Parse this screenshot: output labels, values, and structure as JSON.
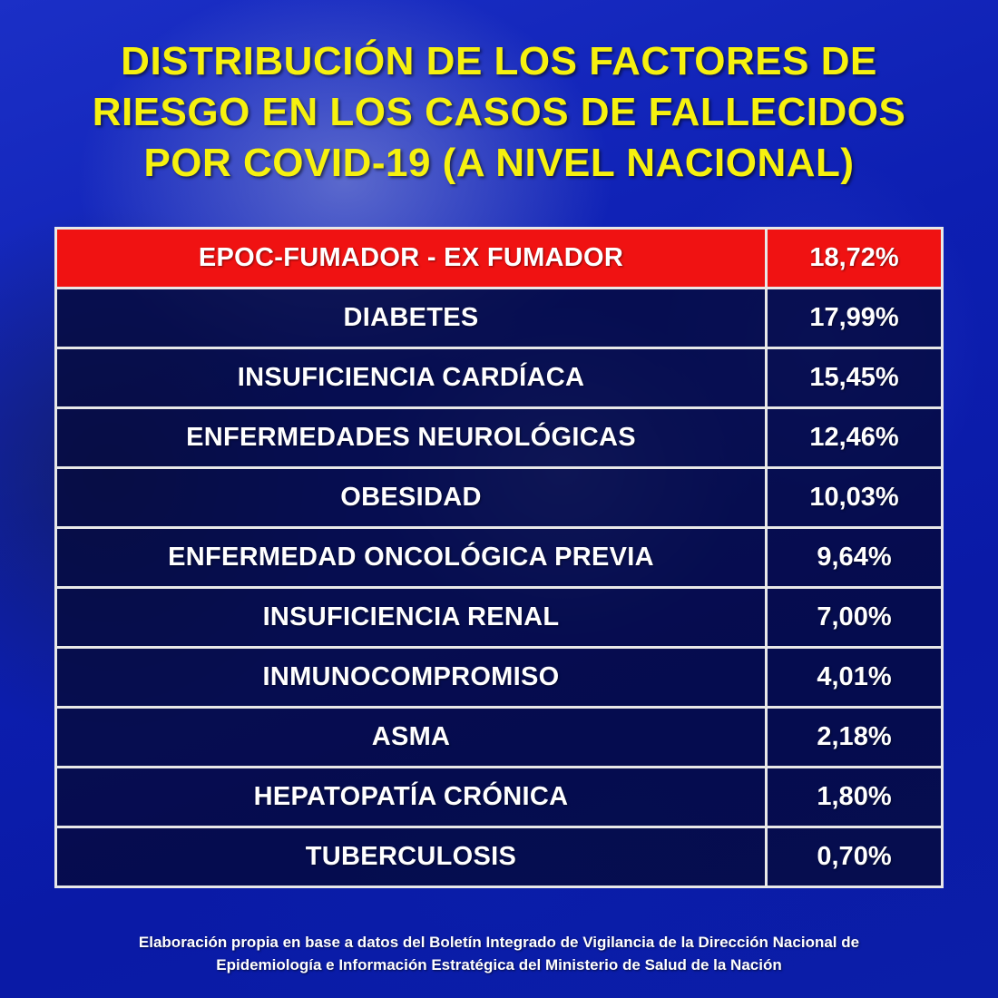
{
  "title_lines": [
    "DISTRIBUCIÓN DE LOS FACTORES DE",
    "RIESGO EN LOS CASOS DE FALLECIDOS",
    "POR COVID-19 (A NIVEL NACIONAL)"
  ],
  "colors": {
    "title": "#f6f10f",
    "highlight_row": "#f01212",
    "row_background": "#050a3c",
    "page_background": "#0c1aa8",
    "border": "#e8e8e8"
  },
  "chart_data": {
    "type": "table",
    "title": "DISTRIBUCIÓN DE LOS FACTORES DE RIESGO EN LOS CASOS DE FALLECIDOS POR COVID-19 (A NIVEL NACIONAL)",
    "rows": [
      {
        "label": "EPOC-FUMADOR - EX FUMADOR",
        "value": 18.72,
        "display": "18,72%",
        "highlight": true
      },
      {
        "label": "DIABETES",
        "value": 17.99,
        "display": "17,99%",
        "highlight": false
      },
      {
        "label": "INSUFICIENCIA CARDÍACA",
        "value": 15.45,
        "display": "15,45%",
        "highlight": false
      },
      {
        "label": "ENFERMEDADES NEUROLÓGICAS",
        "value": 12.46,
        "display": "12,46%",
        "highlight": false
      },
      {
        "label": "OBESIDAD",
        "value": 10.03,
        "display": "10,03%",
        "highlight": false
      },
      {
        "label": "ENFERMEDAD ONCOLÓGICA PREVIA",
        "value": 9.64,
        "display": "9,64%",
        "highlight": false
      },
      {
        "label": "INSUFICIENCIA RENAL",
        "value": 7.0,
        "display": "7,00%",
        "highlight": false
      },
      {
        "label": "INMUNOCOMPROMISO",
        "value": 4.01,
        "display": "4,01%",
        "highlight": false
      },
      {
        "label": "ASMA",
        "value": 2.18,
        "display": "2,18%",
        "highlight": false
      },
      {
        "label": "HEPATOPATÍA CRÓNICA",
        "value": 1.8,
        "display": "1,80%",
        "highlight": false
      },
      {
        "label": "TUBERCULOSIS",
        "value": 0.7,
        "display": "0,70%",
        "highlight": false
      }
    ]
  },
  "footnote_lines": [
    "Elaboración propia en base a datos del Boletín Integrado de Vigilancia de la Dirección Nacional de",
    "Epidemiología e Información Estratégica del Ministerio de Salud de la Nación"
  ]
}
